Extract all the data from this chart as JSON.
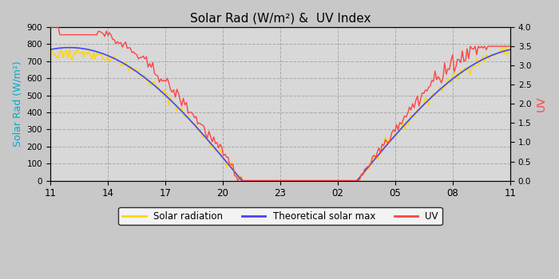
{
  "title": "Solar Rad (W/m²) &  UV Index",
  "ylabel_left": "Solar Rad (W/m²)",
  "ylabel_right": "UV",
  "xlabel_ticks": [
    "11",
    "14",
    "17",
    "20",
    "23",
    "02",
    "05",
    "08",
    "11"
  ],
  "ylim_left": [
    0.0,
    900.0
  ],
  "ylim_right": [
    0.0,
    4.0
  ],
  "yticks_left": [
    0.0,
    100.0,
    200.0,
    300.0,
    400.0,
    500.0,
    600.0,
    700.0,
    800.0,
    900.0
  ],
  "yticks_right": [
    0.0,
    0.5,
    1.0,
    1.5,
    2.0,
    2.5,
    3.0,
    3.5,
    4.0
  ],
  "color_solar": "#FFD700",
  "color_theoretical": "#4444FF",
  "color_uv": "#FF4444",
  "color_ylabel_left": "#00AACC",
  "color_ylabel_right": "#FF4444",
  "bg_color": "#C8C8C8",
  "plot_bg_color": "#D8D8D8",
  "grid_color": "#AAAAAA",
  "legend_labels": [
    "Solar radiation",
    "Theoretical solar max",
    "UV"
  ],
  "legend_colors": [
    "#FFD700",
    "#4444FF",
    "#FF4444"
  ]
}
